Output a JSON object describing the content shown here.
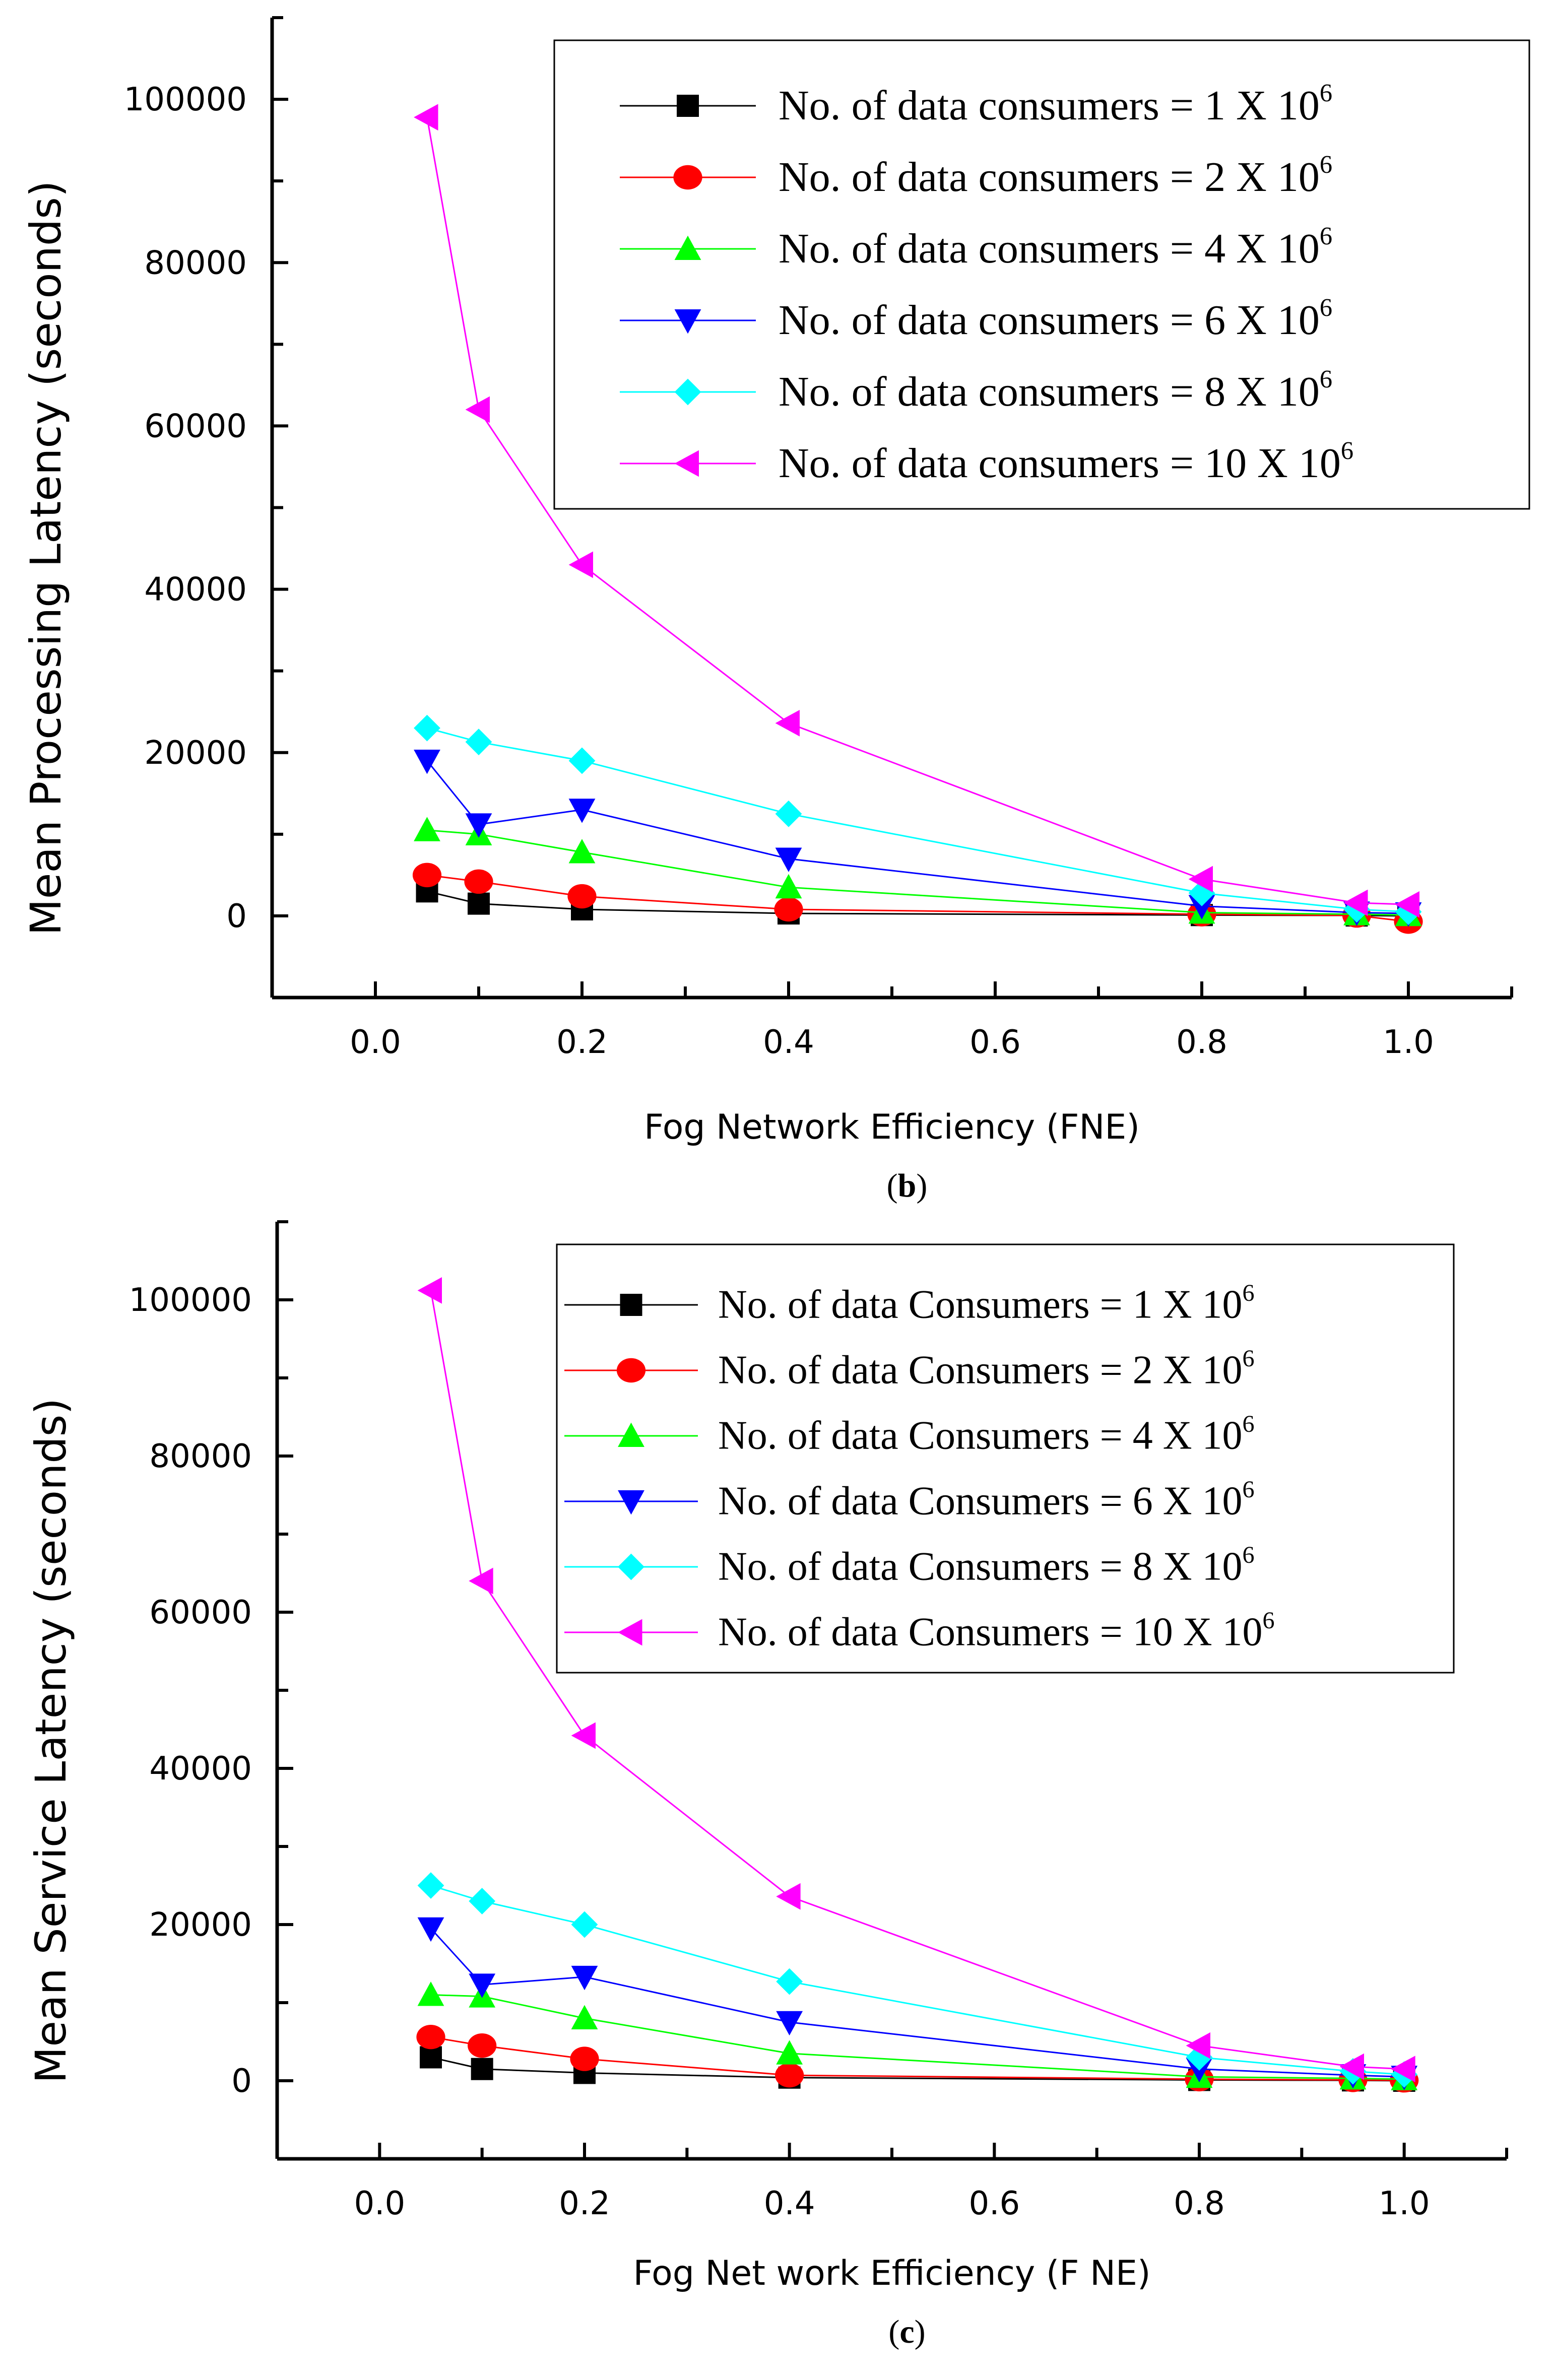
{
  "chart_data": [
    {
      "id": "b",
      "type": "line",
      "caption": "(b)",
      "caption_letter": "b",
      "xlabel": "Fog Network Efficiency (FNE)",
      "ylabel": "Mean Processing Latency (seconds)",
      "xlim": [
        -0.1,
        1.1
      ],
      "ylim": [
        -10000,
        110000
      ],
      "xticks": [
        0.0,
        0.2,
        0.4,
        0.6,
        0.8,
        1.0
      ],
      "xtick_labels": [
        "0.0",
        "0.2",
        "0.4",
        "0.6",
        "0.8",
        "1.0"
      ],
      "yticks": [
        0,
        20000,
        40000,
        60000,
        80000,
        100000
      ],
      "ytick_labels": [
        "0",
        "20000",
        "40000",
        "60000",
        "80000",
        "100000"
      ],
      "legend_position": "top-right",
      "x": [
        0.05,
        0.1,
        0.2,
        0.4,
        0.8,
        0.95,
        1.0
      ],
      "series": [
        {
          "name": "No. of data consumers = 1 X 10",
          "exponent": "6",
          "color": "#000000",
          "marker": "square",
          "values": [
            3000,
            1500,
            800,
            300,
            100,
            50,
            0
          ]
        },
        {
          "name": "No. of data consumers = 2 X 10",
          "exponent": "6",
          "color": "#ff0000",
          "marker": "circle",
          "values": [
            5000,
            4200,
            2400,
            800,
            200,
            50,
            -700
          ]
        },
        {
          "name": "No. of data consumers = 4 X 10",
          "exponent": "6",
          "color": "#00ff00",
          "marker": "triangle-up",
          "values": [
            10500,
            10000,
            7800,
            3500,
            400,
            200,
            100
          ]
        },
        {
          "name": "No. of data consumers = 6 X 10",
          "exponent": "6",
          "color": "#0000ff",
          "marker": "triangle-down",
          "values": [
            19000,
            11200,
            13000,
            7000,
            1200,
            400,
            300
          ]
        },
        {
          "name": "No. of data consumers = 8 X 10",
          "exponent": "6",
          "color": "#00ffff",
          "marker": "diamond",
          "values": [
            23000,
            21300,
            19000,
            12500,
            2800,
            800,
            500
          ]
        },
        {
          "name": "No. of data consumers = 10 X 10",
          "exponent": "6",
          "color": "#ff00ff",
          "marker": "triangle-left",
          "values": [
            97800,
            62000,
            43000,
            23600,
            4500,
            1600,
            1400
          ]
        }
      ]
    },
    {
      "id": "c",
      "type": "line",
      "caption": "(c)",
      "caption_letter": "c",
      "xlabel": "Fog Net work Efficiency (F NE)",
      "ylabel": "Mean Service Latency (seconds)",
      "xlim": [
        -0.1,
        1.1
      ],
      "ylim": [
        -10000,
        110000
      ],
      "xticks": [
        0.0,
        0.2,
        0.4,
        0.6,
        0.8,
        1.0
      ],
      "xtick_labels": [
        "0.0",
        "0.2",
        "0.4",
        "0.6",
        "0.8",
        "1.0"
      ],
      "yticks": [
        0,
        20000,
        40000,
        60000,
        80000,
        100000
      ],
      "ytick_labels": [
        "0",
        "20000",
        "40000",
        "60000",
        "80000",
        "100000"
      ],
      "legend_position": "top-right",
      "x": [
        0.05,
        0.1,
        0.2,
        0.4,
        0.8,
        0.95,
        1.0
      ],
      "series": [
        {
          "name": "No. of data Consumers = 1 X 10",
          "exponent": "6",
          "color": "#000000",
          "marker": "square",
          "values": [
            3000,
            1500,
            1000,
            400,
            100,
            50,
            0
          ]
        },
        {
          "name": "No. of data Consumers = 2 X 10",
          "exponent": "6",
          "color": "#ff0000",
          "marker": "circle",
          "values": [
            5600,
            4500,
            2800,
            700,
            200,
            100,
            50
          ]
        },
        {
          "name": "No. of data Consumers = 4 X 10",
          "exponent": "6",
          "color": "#00ff00",
          "marker": "triangle-up",
          "values": [
            11000,
            10800,
            8000,
            3500,
            500,
            300,
            200
          ]
        },
        {
          "name": "No. of data Consumers = 6 X 10",
          "exponent": "6",
          "color": "#0000ff",
          "marker": "triangle-down",
          "values": [
            19500,
            12300,
            13300,
            7500,
            1500,
            700,
            500
          ]
        },
        {
          "name": "No. of data Consumers = 8 X 10",
          "exponent": "6",
          "color": "#00ffff",
          "marker": "diamond",
          "values": [
            25000,
            23000,
            20000,
            12700,
            3000,
            1200,
            800
          ]
        },
        {
          "name": "No. of data Consumers = 10 X 10",
          "exponent": "6",
          "color": "#ff00ff",
          "marker": "triangle-left",
          "values": [
            101200,
            64000,
            44200,
            23600,
            4500,
            1800,
            1500
          ]
        }
      ]
    }
  ]
}
